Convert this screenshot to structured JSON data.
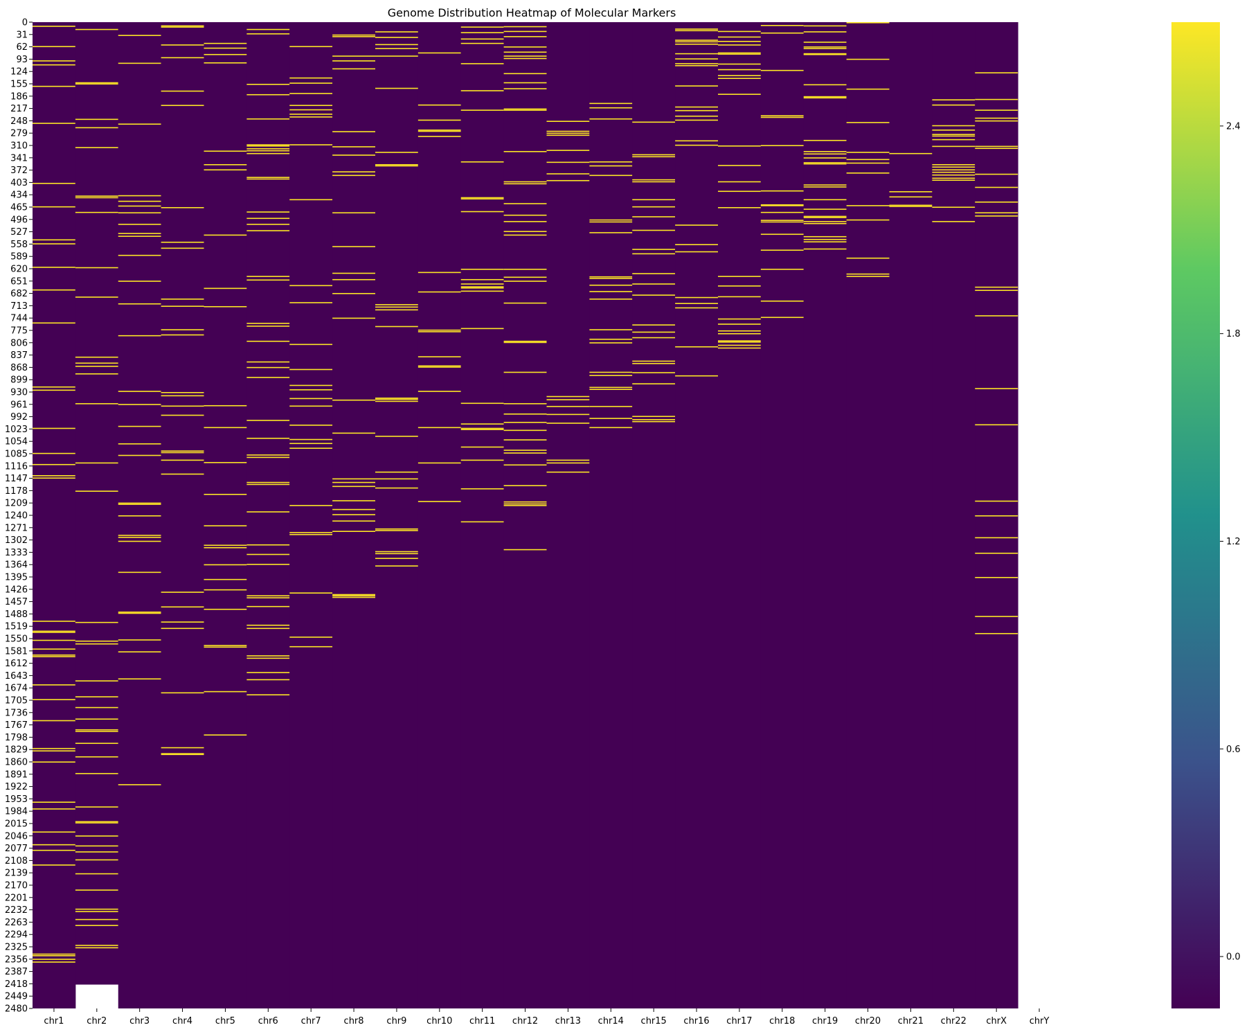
{
  "chart_data": {
    "type": "heatmap",
    "title": "Genome Distribution Heatmap of Molecular Markers",
    "xlabel": "",
    "ylabel": "",
    "colormap": "viridis",
    "colormap_stops": [
      "#440154",
      "#3b528b",
      "#21918c",
      "#5ec962",
      "#fde725"
    ],
    "background_value": -0.15,
    "marker_value": 2.7,
    "color_range": [
      -0.15,
      2.7
    ],
    "colorbar_ticks": [
      "0.0",
      "0.6",
      "1.2",
      "1.8",
      "2.4"
    ],
    "colorbar_tick_values": [
      0.0,
      0.6,
      1.2,
      1.8,
      2.4
    ],
    "y_range": [
      0,
      2480
    ],
    "y_ticks": [
      0,
      31,
      62,
      93,
      124,
      155,
      186,
      217,
      248,
      279,
      310,
      341,
      372,
      403,
      434,
      465,
      496,
      527,
      558,
      589,
      620,
      651,
      682,
      713,
      744,
      775,
      806,
      837,
      868,
      899,
      930,
      961,
      992,
      1023,
      1054,
      1085,
      1116,
      1147,
      1178,
      1209,
      1240,
      1271,
      1302,
      1333,
      1364,
      1395,
      1426,
      1457,
      1488,
      1519,
      1550,
      1581,
      1612,
      1643,
      1674,
      1705,
      1736,
      1767,
      1798,
      1829,
      1860,
      1891,
      1922,
      1953,
      1984,
      2015,
      2046,
      2077,
      2108,
      2139,
      2170,
      2201,
      2232,
      2263,
      2294,
      2325,
      2356,
      2387,
      2418,
      2449,
      2480
    ],
    "columns": [
      {
        "name": "chr1",
        "length": 2480,
        "markers": [
          9,
          60,
          96,
          106,
          160,
          253,
          404,
          463,
          546,
          556,
          615,
          672,
          755,
          916,
          924,
          1020,
          1083,
          1111,
          1139,
          1145,
          1505,
          1530,
          1533,
          1553,
          1575,
          1590,
          1594,
          1665,
          1702,
          1755,
          1825,
          1831,
          1859,
          1960,
          1977,
          2035,
          2067,
          2081,
          2118,
          2342,
          2346,
          2355,
          2362
        ]
      },
      {
        "name": "chr2",
        "length": 2420,
        "markers": [
          17,
          151,
          154,
          243,
          264,
          314,
          436,
          440,
          477,
          616,
          690,
          841,
          856,
          864,
          883,
          958,
          1107,
          1178,
          1508,
          1555,
          1562,
          1655,
          1695,
          1722,
          1751,
          1778,
          1782,
          1812,
          1846,
          1888,
          1972,
          2009,
          2012,
          2045,
          2070,
          2085,
          2105,
          2140,
          2181,
          2229,
          2235,
          2255,
          2270,
          2320,
          2326
        ]
      },
      {
        "name": "chr3",
        "length": 2480,
        "markers": [
          32,
          102,
          255,
          435,
          449,
          461,
          478,
          507,
          530,
          537,
          585,
          650,
          707,
          787,
          927,
          960,
          1015,
          1059,
          1088,
          1208,
          1211,
          1240,
          1289,
          1294,
          1304,
          1382,
          1482,
          1485,
          1552,
          1582,
          1650,
          1916
        ]
      },
      {
        "name": "chr4",
        "length": 2480,
        "markers": [
          8,
          11,
          56,
          88,
          172,
          208,
          465,
          552,
          567,
          695,
          713,
          772,
          785,
          930,
          938,
          964,
          987,
          1077,
          1081,
          1100,
          1135,
          1432,
          1469,
          1507,
          1523,
          1685,
          1823,
          1838,
          1840
        ]
      },
      {
        "name": "chr5",
        "length": 2480,
        "markers": [
          52,
          64,
          80,
          101,
          323,
          357,
          370,
          534,
          668,
          714,
          963,
          1018,
          1106,
          1186,
          1265,
          1314,
          1320,
          1363,
          1400,
          1426,
          1475,
          1566,
          1570,
          1682,
          1791
        ]
      },
      {
        "name": "chr6",
        "length": 2480,
        "markers": [
          17,
          28,
          155,
          181,
          242,
          307,
          310,
          317,
          322,
          329,
          389,
          393,
          476,
          492,
          507,
          523,
          638,
          647,
          756,
          763,
          801,
          853,
          867,
          892,
          1000,
          1045,
          1087,
          1093,
          1156,
          1161,
          1230,
          1313,
          1337,
          1362,
          1441,
          1446,
          1468,
          1515,
          1523,
          1592,
          1598,
          1634,
          1652,
          1690
        ]
      },
      {
        "name": "chr7",
        "length": 2480,
        "markers": [
          60,
          139,
          152,
          178,
          208,
          219,
          230,
          237,
          307,
          445,
          661,
          704,
          809,
          872,
          912,
          923,
          945,
          964,
          1012,
          1048,
          1058,
          1070,
          1214,
          1282,
          1287,
          1434,
          1545,
          1569
        ]
      },
      {
        "name": "chr8",
        "length": 2480,
        "markers": [
          31,
          35,
          84,
          96,
          116,
          274,
          312,
          333,
          375,
          384,
          478,
          563,
          630,
          646,
          681,
          743,
          949,
          1032,
          1147,
          1156,
          1166,
          1202,
          1224,
          1237,
          1253,
          1279,
          1438,
          1441,
          1445
        ]
      },
      {
        "name": "chr9",
        "length": 2480,
        "markers": [
          23,
          37,
          55,
          65,
          84,
          165,
          326,
          357,
          360,
          709,
          715,
          722,
          764,
          944,
          947,
          952,
          1040,
          1130,
          1147,
          1170,
          1273,
          1277,
          1330,
          1335,
          1347,
          1366
        ]
      },
      {
        "name": "chr10",
        "length": 2480,
        "markers": [
          76,
          207,
          245,
          270,
          273,
          286,
          628,
          677,
          773,
          777,
          840,
          863,
          866,
          927,
          1018,
          1107,
          1204
        ]
      },
      {
        "name": "chr11",
        "length": 2480,
        "markers": [
          11,
          25,
          41,
          52,
          103,
          171,
          220,
          350,
          440,
          443,
          475,
          620,
          646,
          657,
          664,
          667,
          675,
          769,
          957,
          1009,
          1020,
          1023,
          1067,
          1100,
          1172,
          1255
        ]
      },
      {
        "name": "chr12",
        "length": 2480,
        "markers": [
          10,
          22,
          35,
          61,
          74,
          84,
          90,
          128,
          151,
          166,
          217,
          220,
          324,
          400,
          405,
          455,
          484,
          500,
          525,
          534,
          620,
          640,
          650,
          705,
          801,
          804,
          879,
          958,
          984,
          1005,
          1025,
          1049,
          1075,
          1082,
          1112,
          1164,
          1205,
          1210,
          1214,
          1325
        ]
      },
      {
        "name": "chr13",
        "length": 2480,
        "markers": [
          248,
          273,
          278,
          283,
          321,
          351,
          380,
          397,
          940,
          948,
          965,
          985,
          1007,
          1100,
          1107,
          1130
        ]
      },
      {
        "name": "chr14",
        "length": 2480,
        "markers": [
          203,
          214,
          242,
          350,
          360,
          384,
          496,
          501,
          528,
          639,
          643,
          660,
          676,
          695,
          772,
          796,
          805,
          879,
          887,
          917,
          922,
          965,
          995,
          1018
        ]
      },
      {
        "name": "chr15",
        "length": 2480,
        "markers": [
          250,
          332,
          337,
          395,
          400,
          445,
          463,
          488,
          522,
          570,
          581,
          631,
          657,
          685,
          760,
          778,
          792,
          851,
          857,
          880,
          908,
          990,
          998,
          1003
        ]
      },
      {
        "name": "chr16",
        "length": 2480,
        "markers": [
          16,
          20,
          44,
          48,
          54,
          78,
          91,
          103,
          108,
          159,
          212,
          221,
          235,
          245,
          297,
          308,
          509,
          558,
          576,
          691,
          706,
          717,
          815,
          888
        ]
      },
      {
        "name": "chr17",
        "length": 2480,
        "markers": [
          22,
          36,
          47,
          56,
          76,
          79,
          104,
          118,
          133,
          140,
          180,
          310,
          359,
          400,
          424,
          465,
          638,
          662,
          689,
          745,
          758,
          775,
          782,
          800,
          803,
          811,
          818
        ]
      },
      {
        "name": "chr18",
        "length": 2480,
        "markers": [
          7,
          26,
          120,
          234,
          238,
          309,
          423,
          458,
          460,
          477,
          497,
          501,
          532,
          572,
          620,
          700,
          741
        ]
      },
      {
        "name": "chr19",
        "length": 2480,
        "markers": [
          8,
          23,
          49,
          61,
          65,
          78,
          80,
          156,
          186,
          189,
          296,
          324,
          330,
          340,
          352,
          355,
          408,
          413,
          445,
          469,
          487,
          490,
          500,
          505,
          538,
          545,
          551,
          569
        ]
      },
      {
        "name": "chr20",
        "length": 2480,
        "markers": [
          0,
          92,
          167,
          251,
          326,
          344,
          353,
          378,
          460,
          496,
          592,
          632,
          638
        ]
      },
      {
        "name": "chr21",
        "length": 2480,
        "markers": [
          329,
          425,
          438,
          459,
          462
        ]
      },
      {
        "name": "chr22",
        "length": 2480,
        "markers": [
          194,
          207,
          259,
          270,
          281,
          285,
          294,
          311,
          357,
          363,
          370,
          376,
          383,
          391,
          396,
          464,
          500
        ]
      },
      {
        "name": "chrX",
        "length": 2480,
        "markers": [
          126,
          193,
          220,
          240,
          247,
          311,
          316,
          381,
          414,
          451,
          478,
          486,
          665,
          673,
          737,
          920,
          1011,
          1203,
          1240,
          1295,
          1334,
          1395,
          1493,
          1536
        ]
      },
      {
        "name": "chrY",
        "length": 0,
        "markers": []
      }
    ]
  }
}
